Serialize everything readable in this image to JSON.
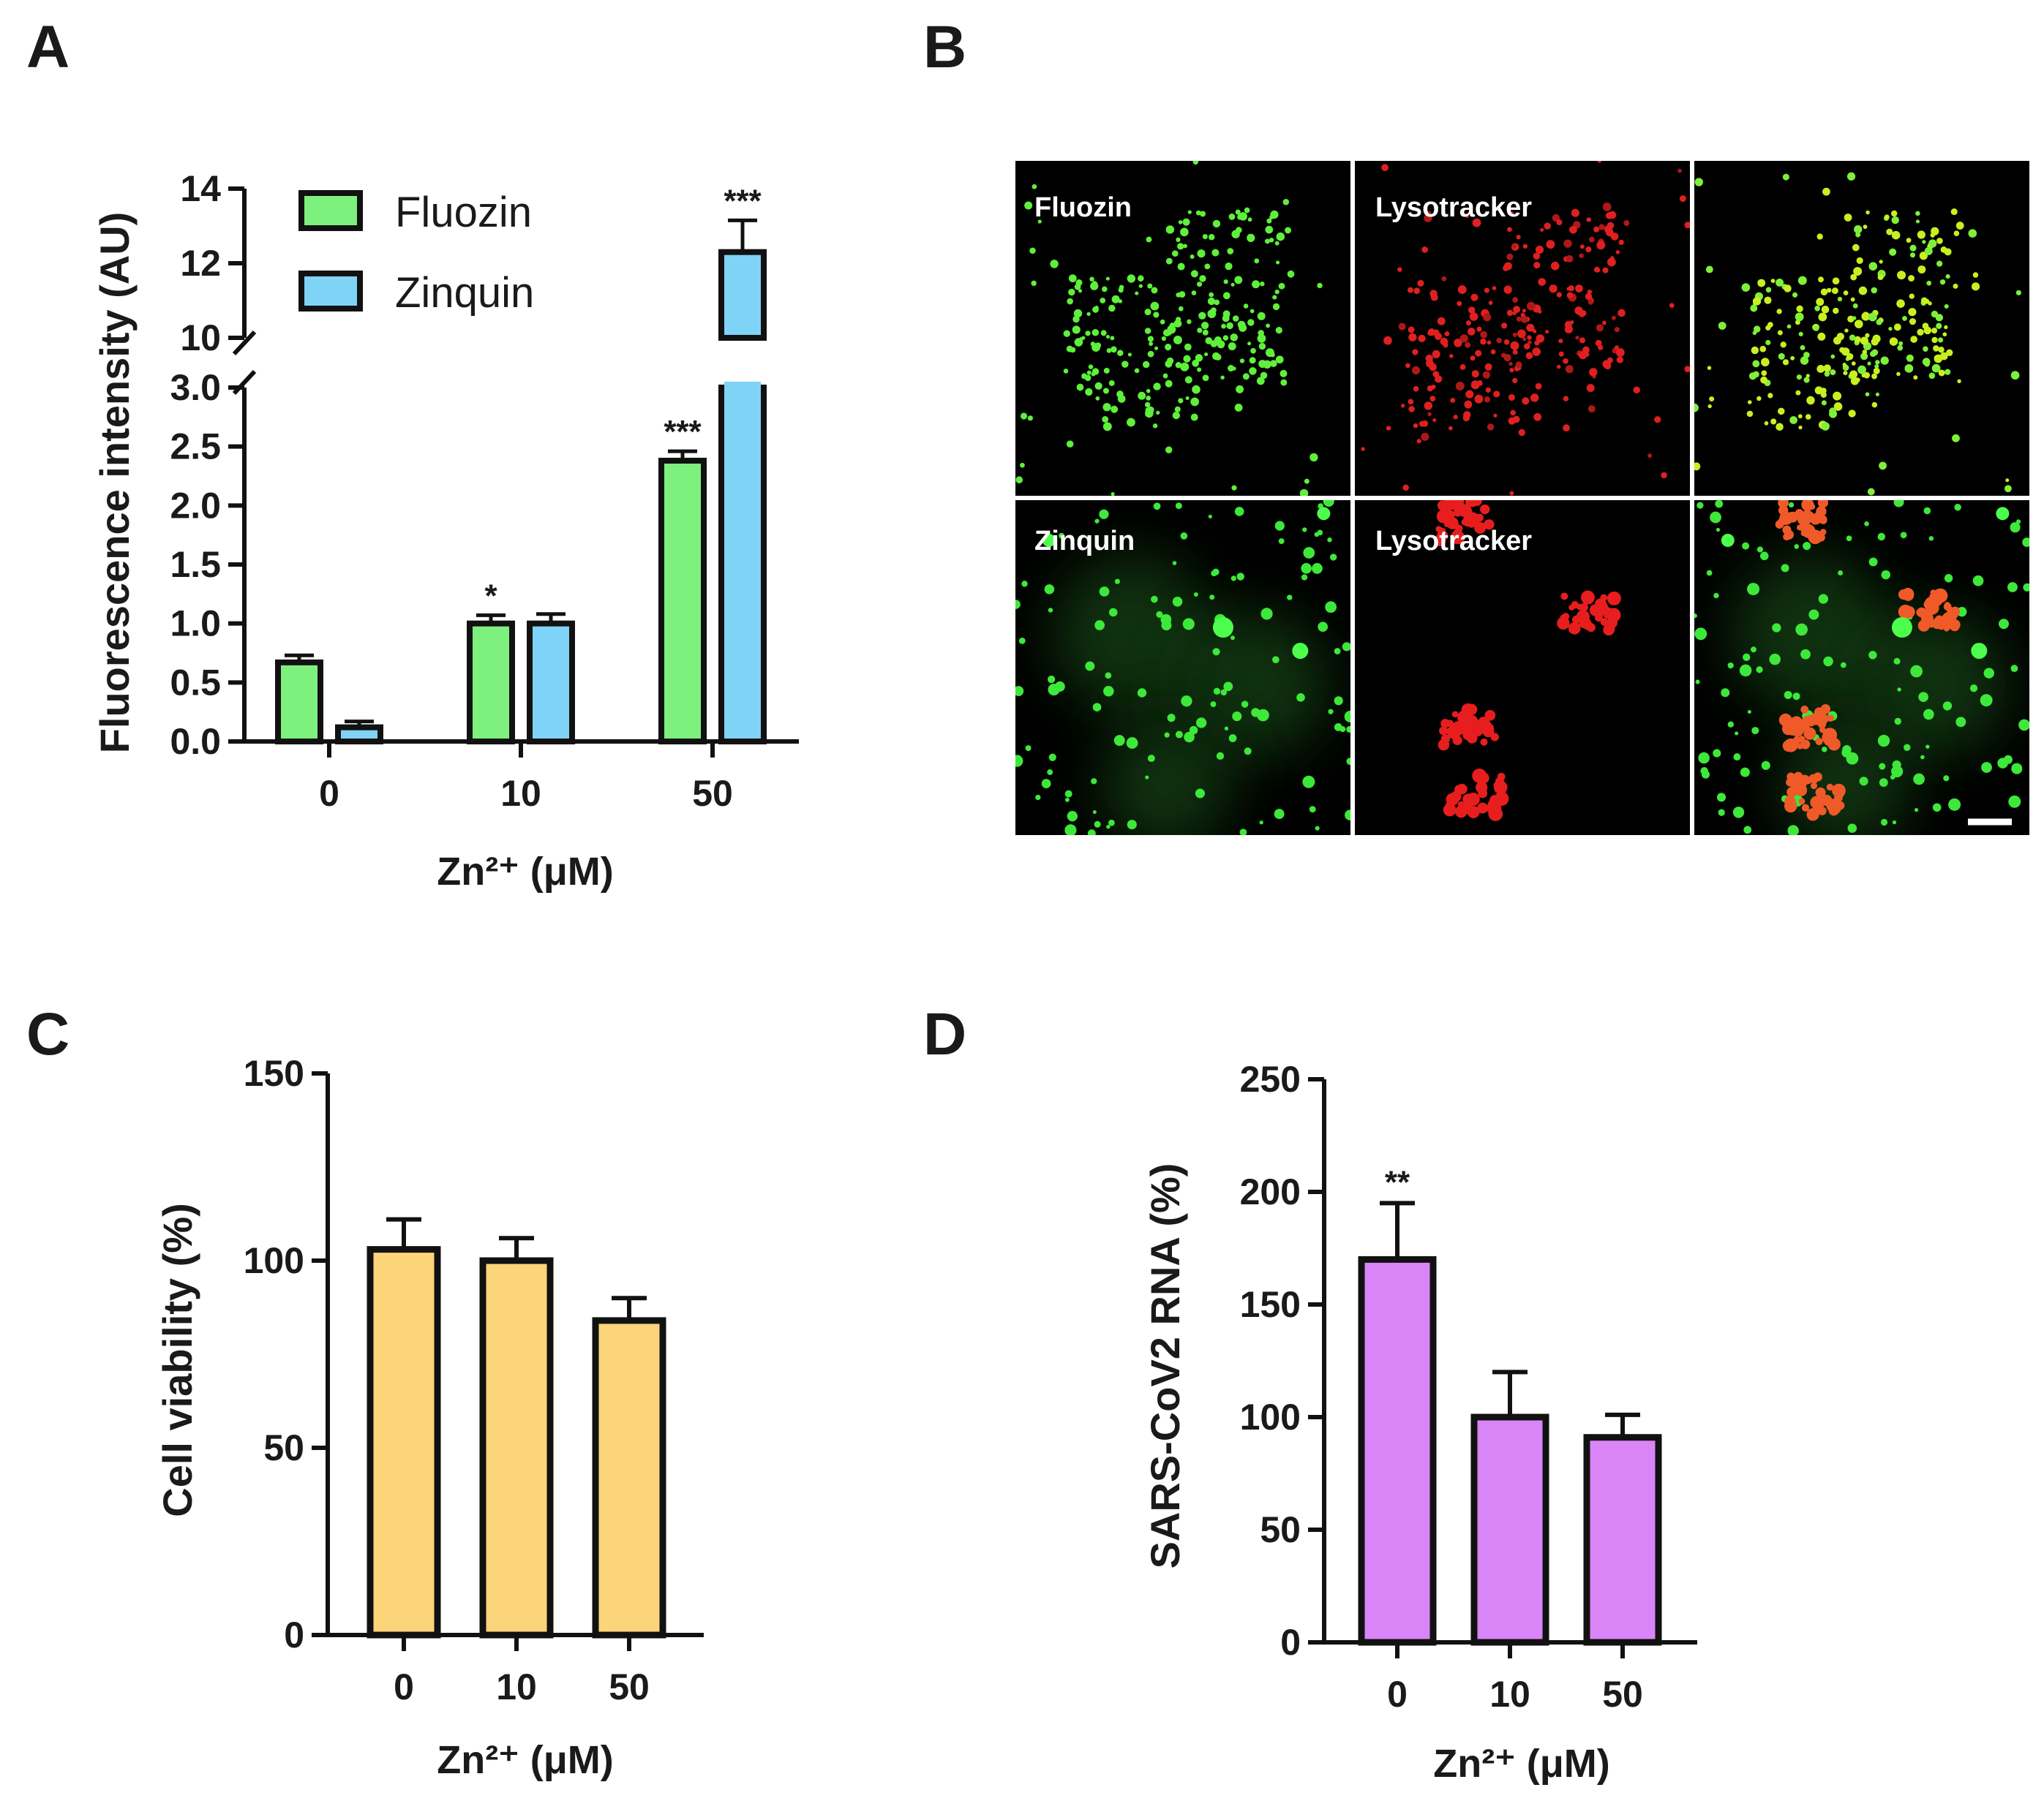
{
  "panels": {
    "A": "A",
    "B": "B",
    "C": "C",
    "D": "D"
  },
  "chart_data": [
    {
      "id": "A",
      "type": "bar",
      "categories": [
        "0",
        "10",
        "50"
      ],
      "series": [
        {
          "name": "Fluozin",
          "values": [
            0.67,
            1.0,
            2.38
          ],
          "errors": [
            0.06,
            0.07,
            0.08
          ],
          "sig": [
            "",
            "*",
            "***"
          ],
          "color": "#7ef07e"
        },
        {
          "name": "Zinquin",
          "values": [
            0.12,
            1.0,
            12.3
          ],
          "errors": [
            0.05,
            0.08,
            0.85
          ],
          "sig": [
            "",
            "",
            "***"
          ],
          "color": "#7fd3f7"
        }
      ],
      "ylabel": "Fluorescence intensity (AU)",
      "xlabel": "Zn²⁺ (μM)",
      "yticks_lower": [
        "0.0",
        "0.5",
        "1.0",
        "1.5",
        "2.0",
        "2.5",
        "3.0"
      ],
      "yticks_upper": [
        "10",
        "12",
        "14"
      ],
      "ylim_lower": [
        0,
        3.0
      ],
      "ylim_upper": [
        10,
        14
      ],
      "axis_break": true,
      "legend": "top-left"
    },
    {
      "id": "C",
      "type": "bar",
      "categories": [
        "0",
        "10",
        "50"
      ],
      "series": [
        {
          "name": "",
          "values": [
            103,
            100,
            84
          ],
          "errors": [
            8,
            6,
            6
          ],
          "sig": [
            "",
            "",
            ""
          ],
          "color": "#fcd57a"
        }
      ],
      "ylabel": "Cell viability  (%)",
      "xlabel": "Zn²⁺ (μM)",
      "yticks": [
        "0",
        "50",
        "100",
        "150"
      ],
      "ylim": [
        0,
        150
      ]
    },
    {
      "id": "D",
      "type": "bar",
      "categories": [
        "0",
        "10",
        "50"
      ],
      "series": [
        {
          "name": "",
          "values": [
            170,
            100,
            91
          ],
          "errors": [
            25,
            20,
            10
          ],
          "sig": [
            "**",
            "",
            ""
          ],
          "color": "#d985f7"
        }
      ],
      "ylabel": "SARS-CoV2 RNA (%)",
      "xlabel": "Zn²⁺ (μM)",
      "yticks": [
        "0",
        "50",
        "100",
        "150",
        "200",
        "250"
      ],
      "ylim": [
        0,
        250
      ]
    }
  ],
  "micrographs": {
    "labels": [
      "Fluozin",
      "Lysotracker",
      "Zinquin",
      "Lysotracker"
    ]
  }
}
